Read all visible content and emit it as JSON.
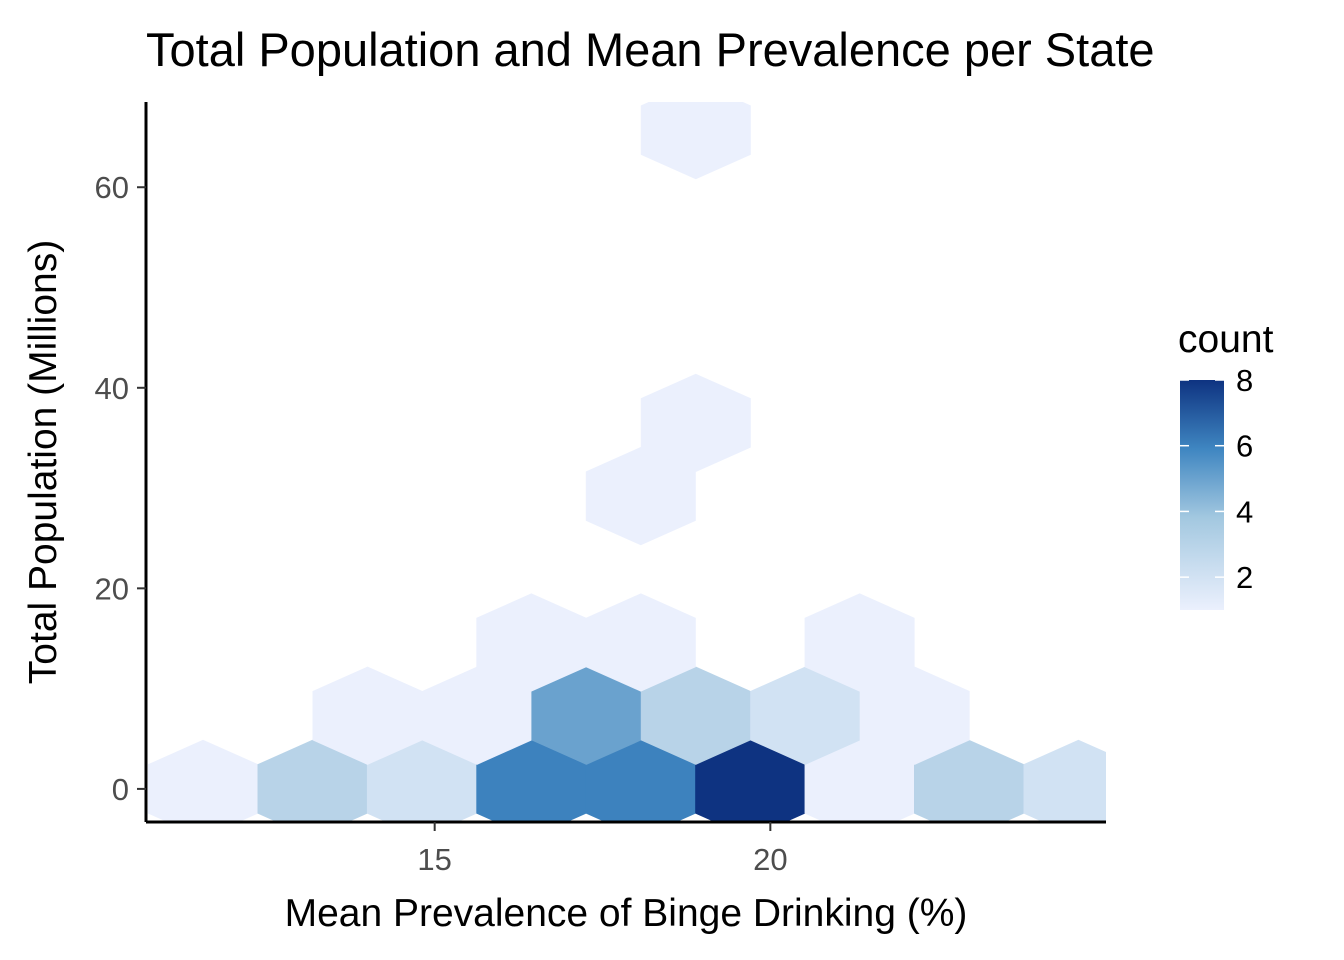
{
  "chart_data": {
    "type": "hexbin",
    "title": "Total Population and Mean Prevalence per State",
    "xlabel": "Mean Prevalence of Binge Drinking (%)",
    "ylabel": "Total Population (Millions)",
    "xlim": [
      10.7,
      25.0
    ],
    "ylim": [
      -3.3,
      68.5
    ],
    "xticks": [
      15,
      20
    ],
    "yticks": [
      0,
      20,
      40,
      60
    ],
    "grid": false,
    "legend": {
      "title": "count",
      "position": "right",
      "range": [
        1,
        8
      ],
      "ticks": [
        2,
        4,
        6,
        8
      ],
      "low_color": "#ebf0fd",
      "high_color": "#0e3381"
    },
    "hexes": [
      {
        "x": 11.55,
        "y": 0,
        "count": 1
      },
      {
        "x": 13.18,
        "y": 0,
        "count": 3
      },
      {
        "x": 14.81,
        "y": 0,
        "count": 2
      },
      {
        "x": 16.44,
        "y": 0,
        "count": 6
      },
      {
        "x": 18.07,
        "y": 0,
        "count": 6
      },
      {
        "x": 19.7,
        "y": 0,
        "count": 8
      },
      {
        "x": 21.33,
        "y": 0,
        "count": 1
      },
      {
        "x": 22.96,
        "y": 0,
        "count": 3
      },
      {
        "x": 24.59,
        "y": 0,
        "count": 2
      },
      {
        "x": 14.0,
        "y": 7.3,
        "count": 1
      },
      {
        "x": 15.63,
        "y": 7.3,
        "count": 1
      },
      {
        "x": 17.26,
        "y": 7.3,
        "count": 5
      },
      {
        "x": 18.89,
        "y": 7.3,
        "count": 3
      },
      {
        "x": 20.52,
        "y": 7.3,
        "count": 2
      },
      {
        "x": 22.15,
        "y": 7.3,
        "count": 1
      },
      {
        "x": 16.44,
        "y": 14.6,
        "count": 1
      },
      {
        "x": 18.07,
        "y": 14.6,
        "count": 1
      },
      {
        "x": 21.33,
        "y": 14.6,
        "count": 1
      },
      {
        "x": 18.07,
        "y": 29.2,
        "count": 1
      },
      {
        "x": 18.89,
        "y": 36.5,
        "count": 1
      },
      {
        "x": 18.89,
        "y": 65.7,
        "count": 1
      }
    ]
  }
}
